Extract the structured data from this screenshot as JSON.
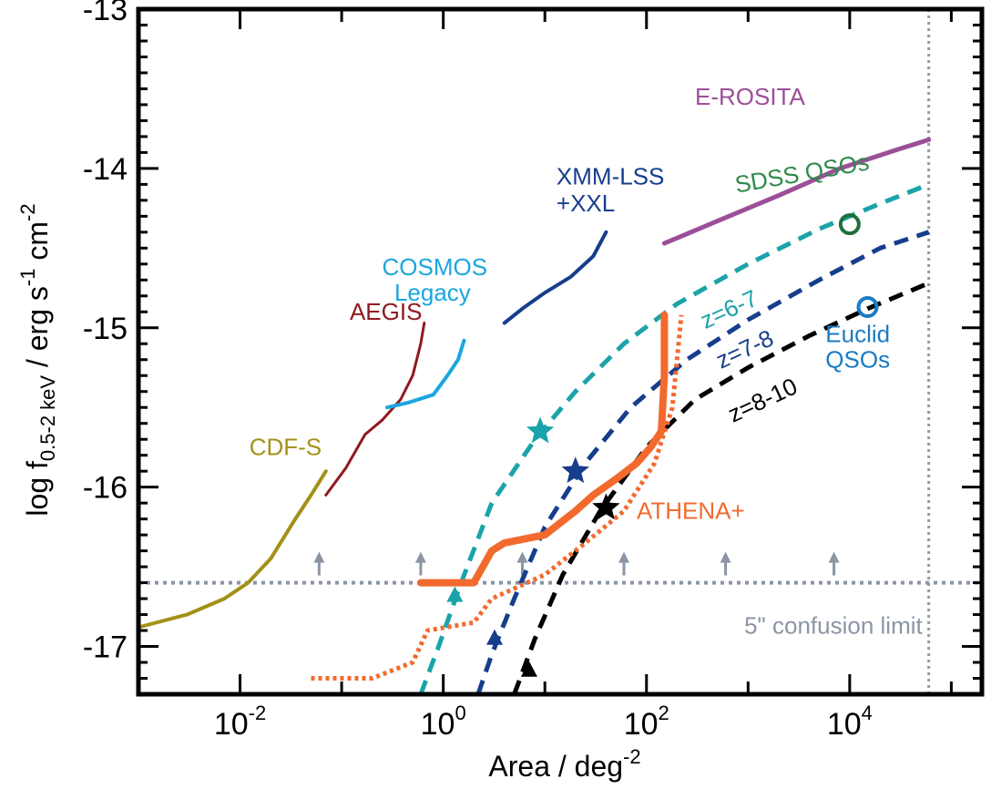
{
  "chart_data": {
    "type": "line",
    "xlabel": "Area / deg",
    "xlabel_sup": "-2",
    "ylabel": {
      "prefix": "log f",
      "sub": "0.5-2 keV",
      "units": " / erg s",
      "sup1": "-1",
      "cm": " cm",
      "sup2": "-2"
    },
    "xscale": "log",
    "xlim": [
      0.001,
      200000
    ],
    "ylim": [
      -17.3,
      -13
    ],
    "yticks": [
      -17,
      -16,
      -15,
      -14,
      -13
    ],
    "xticks": [
      {
        "value": 0.01,
        "base": "10",
        "exp": "-2"
      },
      {
        "value": 1,
        "base": "10",
        "exp": "0"
      },
      {
        "value": 100,
        "base": "10",
        "exp": "2"
      },
      {
        "value": 10000,
        "base": "10",
        "exp": "4"
      }
    ],
    "series": [
      {
        "name": "CDF-S",
        "color": "#a39117",
        "style": "solid",
        "width": 4,
        "x": [
          0.001,
          0.003,
          0.007,
          0.012,
          0.02,
          0.035,
          0.05,
          0.07
        ],
        "y": [
          -16.88,
          -16.8,
          -16.7,
          -16.6,
          -16.45,
          -16.2,
          -16.05,
          -15.9
        ]
      },
      {
        "name": "AEGIS",
        "color": "#8e1a1f",
        "style": "solid",
        "width": 3,
        "x": [
          0.07,
          0.11,
          0.17,
          0.25,
          0.38,
          0.5,
          0.6,
          0.65
        ],
        "y": [
          -16.05,
          -15.88,
          -15.67,
          -15.58,
          -15.45,
          -15.3,
          -15.1,
          -14.97
        ]
      },
      {
        "name": "COSMOS Legacy",
        "color": "#1aa6df",
        "style": "solid",
        "width": 4,
        "x": [
          0.28,
          0.45,
          0.8,
          1.1,
          1.4,
          1.6
        ],
        "y": [
          -15.5,
          -15.47,
          -15.42,
          -15.3,
          -15.2,
          -15.08
        ]
      },
      {
        "name": "XMM-LSS +XXL",
        "color": "#163e8c",
        "style": "solid",
        "width": 4,
        "x": [
          4,
          6,
          10,
          18,
          30,
          40
        ],
        "y": [
          -14.97,
          -14.88,
          -14.78,
          -14.68,
          -14.55,
          -14.4
        ]
      },
      {
        "name": "E-ROSITA",
        "color": "#9b4f99",
        "style": "solid",
        "width": 5,
        "x": [
          150,
          500,
          2000,
          8000,
          30000,
          60000
        ],
        "y": [
          -14.47,
          -14.33,
          -14.17,
          -14.0,
          -13.88,
          -13.82
        ]
      },
      {
        "name": "z=6-7",
        "color": "#1aa3a8",
        "style": "dashed",
        "width": 5,
        "x": [
          0.6,
          0.9,
          1.5,
          3,
          8,
          20,
          60,
          200,
          1000,
          5000,
          20000,
          60000
        ],
        "y": [
          -17.3,
          -17.0,
          -16.6,
          -16.1,
          -15.7,
          -15.4,
          -15.1,
          -14.85,
          -14.6,
          -14.38,
          -14.22,
          -14.1
        ]
      },
      {
        "name": "z=7-8",
        "color": "#163e8c",
        "style": "dashed",
        "width": 5,
        "x": [
          2.2,
          3,
          5,
          10,
          25,
          70,
          250,
          1000,
          5000,
          20000,
          60000
        ],
        "y": [
          -17.3,
          -17.05,
          -16.7,
          -16.25,
          -15.85,
          -15.5,
          -15.2,
          -14.95,
          -14.7,
          -14.5,
          -14.4
        ]
      },
      {
        "name": "z=8-10",
        "color": "#000000",
        "style": "dashed",
        "width": 5,
        "x": [
          5,
          8,
          15,
          35,
          100,
          300,
          1000,
          4000,
          15000,
          60000
        ],
        "y": [
          -17.3,
          -16.95,
          -16.55,
          -16.15,
          -15.75,
          -15.45,
          -15.25,
          -15.05,
          -14.88,
          -14.72
        ]
      },
      {
        "name": "ATHENA+",
        "color": "#f26a2e",
        "style": "solid",
        "width": 8,
        "x": [
          0.6,
          2,
          3,
          4,
          10,
          20,
          30,
          50,
          80,
          110,
          140,
          150,
          150
        ],
        "y": [
          -16.6,
          -16.6,
          -16.4,
          -16.35,
          -16.3,
          -16.15,
          -16.05,
          -15.95,
          -15.85,
          -15.75,
          -15.65,
          -15.3,
          -14.92
        ]
      },
      {
        "name": "ATHENA+ (dotted)",
        "color": "#f26a2e",
        "style": "dotted",
        "width": 5,
        "x": [
          0.05,
          0.2,
          0.5,
          0.7,
          2,
          3,
          10,
          25,
          60,
          120,
          180,
          200,
          220
        ],
        "y": [
          -17.2,
          -17.2,
          -17.1,
          -16.9,
          -16.85,
          -16.7,
          -16.55,
          -16.35,
          -16.15,
          -15.85,
          -15.5,
          -15.2,
          -14.92
        ]
      }
    ],
    "markers": [
      {
        "shape": "star",
        "color": "#1aa3a8",
        "x": 9,
        "y": -15.65
      },
      {
        "shape": "star",
        "color": "#163e8c",
        "x": 20,
        "y": -15.9
      },
      {
        "shape": "star",
        "color": "#000000",
        "x": 40,
        "y": -16.13
      },
      {
        "shape": "triangle",
        "color": "#1aa3a8",
        "x": 1.3,
        "y": -16.68
      },
      {
        "shape": "triangle",
        "color": "#163e8c",
        "x": 3.2,
        "y": -16.95
      },
      {
        "shape": "triangle",
        "color": "#000000",
        "x": 7,
        "y": -17.15
      },
      {
        "shape": "circle",
        "color": "#1f6f3b",
        "x": 10000,
        "y": -14.35
      },
      {
        "shape": "circle",
        "color": "#1a7bc4",
        "x": 15000,
        "y": -14.87
      }
    ],
    "confusion_limit": {
      "y": -16.6,
      "color": "#8b95a4",
      "label": "5\" confusion limit",
      "arrow_x": [
        0.06,
        0.6,
        6,
        60,
        600,
        7000
      ]
    },
    "right_vline": {
      "x": 60000,
      "color": "#999999"
    },
    "annotations": [
      {
        "text": "CDF-S",
        "color": "#a39117",
        "x": 0.028,
        "y": -15.8,
        "anchor": "middle",
        "size": 26
      },
      {
        "text": "AEGIS",
        "color": "#8e1a1f",
        "x": 0.12,
        "y": -14.95,
        "anchor": "start",
        "size": 26
      },
      {
        "text": "COSMOS",
        "color": "#1aa6df",
        "x": 0.25,
        "y": -14.67,
        "anchor": "start",
        "size": 26
      },
      {
        "text": "Legacy",
        "color": "#1aa6df",
        "x": 0.33,
        "y": -14.83,
        "anchor": "start",
        "size": 26
      },
      {
        "text": "XMM-LSS",
        "color": "#163e8c",
        "x": 13,
        "y": -14.1,
        "anchor": "start",
        "size": 26
      },
      {
        "text": "+XXL",
        "color": "#163e8c",
        "x": 13,
        "y": -14.27,
        "anchor": "start",
        "size": 26
      },
      {
        "text": "E-ROSITA",
        "color": "#9b4f99",
        "x": 300,
        "y": -13.6,
        "anchor": "start",
        "size": 26
      },
      {
        "text": "SDSS QSOs",
        "color": "#2d8a4a",
        "x": 3500,
        "y": -14.08,
        "anchor": "middle",
        "size": 22,
        "rotate": -10
      },
      {
        "text": "z=6-7",
        "color": "#1aa3a8",
        "x": 700,
        "y": -14.93,
        "anchor": "middle",
        "size": 34,
        "rotate": -25
      },
      {
        "text": "z=7-8",
        "color": "#163e8c",
        "x": 1000,
        "y": -15.18,
        "anchor": "middle",
        "size": 34,
        "rotate": -25
      },
      {
        "text": "z=8-10",
        "color": "#000000",
        "x": 1500,
        "y": -15.5,
        "anchor": "middle",
        "size": 34,
        "rotate": -25
      },
      {
        "text": "Euclid",
        "color": "#1a7bc4",
        "x": 12000,
        "y": -15.09,
        "anchor": "middle",
        "size": 20
      },
      {
        "text": "QSOs",
        "color": "#1a7bc4",
        "x": 12000,
        "y": -15.25,
        "anchor": "middle",
        "size": 20
      },
      {
        "text": "ATHENA+",
        "color": "#f26a2e",
        "x": 80,
        "y": -16.2,
        "anchor": "start",
        "size": 38
      },
      {
        "text": "5\" confusion limit",
        "color": "#8b95a4",
        "x": 52000,
        "y": -16.92,
        "anchor": "end",
        "size": 20
      }
    ]
  }
}
